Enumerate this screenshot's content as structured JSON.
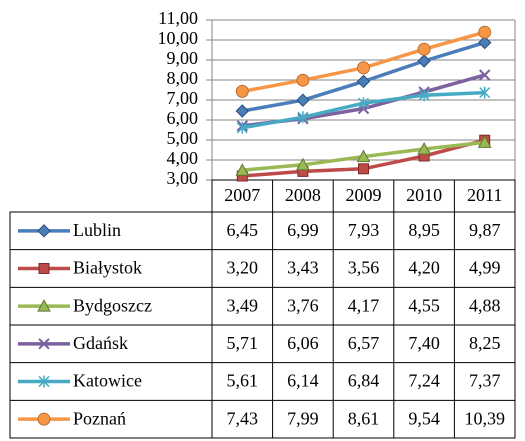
{
  "chart_data": {
    "type": "line",
    "categories": [
      "2007",
      "2008",
      "2009",
      "2010",
      "2011"
    ],
    "ylim": [
      3,
      11
    ],
    "yticks": [
      {
        "value": 3,
        "label": "3,00"
      },
      {
        "value": 4,
        "label": "4,00"
      },
      {
        "value": 5,
        "label": "5,00"
      },
      {
        "value": 6,
        "label": "6,00"
      },
      {
        "value": 7,
        "label": "7,00"
      },
      {
        "value": 8,
        "label": "8,00"
      },
      {
        "value": 9,
        "label": "9,00"
      },
      {
        "value": 10,
        "label": "10,00"
      },
      {
        "value": 11,
        "label": "11,00"
      }
    ],
    "grid": true,
    "series": [
      {
        "name": "Lublin",
        "color": "#4a7ebb",
        "marker": "diamond",
        "values": [
          6.45,
          6.99,
          7.93,
          8.95,
          9.87
        ],
        "value_labels": [
          "6,45",
          "6,99",
          "7,93",
          "8,95",
          "9,87"
        ]
      },
      {
        "name": "Białystok",
        "color": "#be4b48",
        "marker": "square",
        "values": [
          3.2,
          3.43,
          3.56,
          4.2,
          4.99
        ],
        "value_labels": [
          "3,20",
          "3,43",
          "3,56",
          "4,20",
          "4,99"
        ]
      },
      {
        "name": "Bydgoszcz",
        "color": "#98b954",
        "marker": "triangle",
        "values": [
          3.49,
          3.76,
          4.17,
          4.55,
          4.88
        ],
        "value_labels": [
          "3,49",
          "3,76",
          "4,17",
          "4,55",
          "4,88"
        ]
      },
      {
        "name": "Gdańsk",
        "color": "#7d60a0",
        "marker": "x",
        "values": [
          5.71,
          6.06,
          6.57,
          7.4,
          8.25
        ],
        "value_labels": [
          "5,71",
          "6,06",
          "6,57",
          "7,40",
          "8,25"
        ]
      },
      {
        "name": "Katowice",
        "color": "#46aac5",
        "marker": "star",
        "values": [
          5.61,
          6.14,
          6.84,
          7.24,
          7.37
        ],
        "value_labels": [
          "5,61",
          "6,14",
          "6,84",
          "7,24",
          "7,37"
        ]
      },
      {
        "name": "Poznań",
        "color": "#f79646",
        "marker": "circle",
        "values": [
          7.43,
          7.99,
          8.61,
          9.54,
          10.39
        ],
        "value_labels": [
          "7,43",
          "7,99",
          "8,61",
          "9,54",
          "10,39"
        ]
      }
    ]
  }
}
